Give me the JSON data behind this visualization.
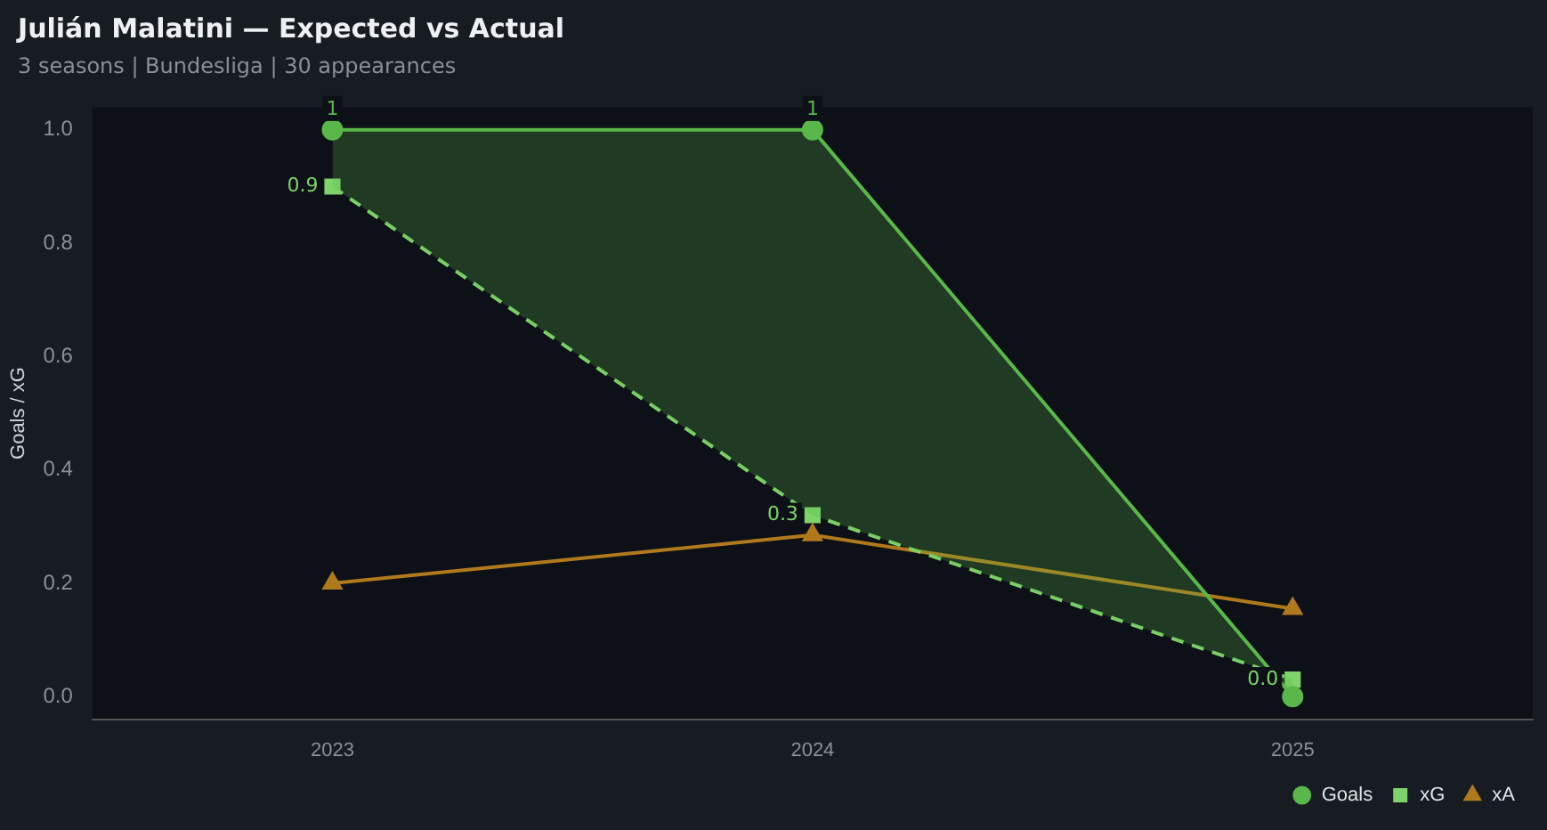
{
  "chart_data": {
    "type": "line",
    "title": "Julián Malatini — Expected vs Actual",
    "subtitle": "3 seasons | Bundesliga | 30 appearances",
    "ylabel": "Goals / xG",
    "categories": [
      "2023",
      "2024",
      "2025"
    ],
    "series": [
      {
        "name": "Goals",
        "color": "#5ab84a",
        "values": [
          1,
          1,
          0
        ],
        "marker": "circle",
        "line_style": "solid",
        "value_labels": [
          "1",
          "1",
          null
        ],
        "lower": [
          0.9,
          0.32,
          0.03
        ],
        "upper": [
          1,
          1,
          0
        ]
      },
      {
        "name": "xG",
        "color": "#7ed36a",
        "values": [
          0.9,
          0.32,
          0.03
        ],
        "marker": "square",
        "line_style": "dashed",
        "value_labels": [
          "0.9",
          "0.3",
          "0.0"
        ]
      },
      {
        "name": "xA",
        "color": "#b07a1c",
        "values": [
          0.2,
          0.285,
          0.155
        ],
        "marker": "triangle",
        "line_style": "solid"
      }
    ],
    "ylim": [
      -0.04,
      1.04
    ],
    "yticks": [
      {
        "value": 0,
        "label": "0.0"
      },
      {
        "value": 0.2,
        "label": "0.2"
      },
      {
        "value": 0.4,
        "label": "0.4"
      },
      {
        "value": 0.6,
        "label": "0.6"
      },
      {
        "value": 0.8,
        "label": "0.8"
      },
      {
        "value": 1,
        "label": "1.0"
      }
    ],
    "grid": false,
    "legend": "bottom right"
  }
}
